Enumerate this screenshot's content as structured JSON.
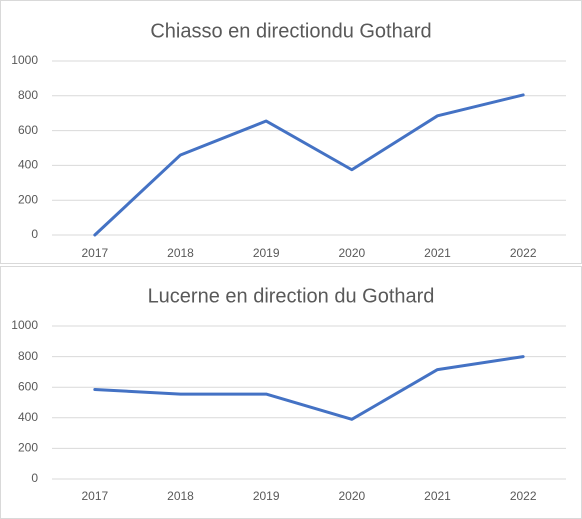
{
  "chart_data": [
    {
      "type": "line",
      "title": "Chiasso en directiondu Gothard",
      "categories": [
        "2017",
        "2018",
        "2019",
        "2020",
        "2021",
        "2022"
      ],
      "series": [
        {
          "color": "#4472c4",
          "values": [
            0,
            460,
            655,
            375,
            685,
            805
          ]
        }
      ],
      "ylim": [
        0,
        1000
      ],
      "yticks": [
        0,
        200,
        400,
        600,
        800,
        1000
      ],
      "grid": true
    },
    {
      "type": "line",
      "title": "Lucerne en direction du Gothard",
      "categories": [
        "2017",
        "2018",
        "2019",
        "2020",
        "2021",
        "2022"
      ],
      "series": [
        {
          "color": "#4472c4",
          "values": [
            585,
            555,
            555,
            390,
            715,
            800
          ]
        }
      ],
      "ylim": [
        0,
        1000
      ],
      "yticks": [
        0,
        200,
        400,
        600,
        800,
        1000
      ],
      "grid": true
    }
  ]
}
